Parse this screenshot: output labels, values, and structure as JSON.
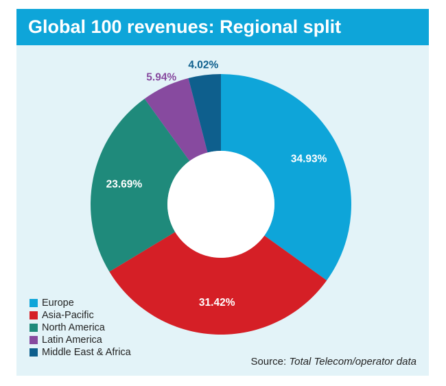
{
  "chart_data": {
    "type": "pie",
    "title": "Global 100 revenues: Regional split",
    "categories": [
      "Europe",
      "Asia-Pacific",
      "North America",
      "Latin America",
      "Middle East & Africa"
    ],
    "values": [
      34.93,
      31.42,
      23.69,
      5.94,
      4.02
    ],
    "labels": [
      "34.93%",
      "31.42%",
      "23.69%",
      "5.94%",
      "4.02%"
    ],
    "colors": [
      "#0ea5d9",
      "#d51f26",
      "#1f8a7b",
      "#874a9f",
      "#0e5f8d"
    ],
    "label_colors": [
      "#ffffff",
      "#ffffff",
      "#ffffff",
      "#874a9f",
      "#0e5f8d"
    ],
    "donut": true,
    "legend_position": "bottom-left"
  },
  "source": {
    "prefix": "Source: ",
    "title": "Total Telecom/operator data"
  }
}
